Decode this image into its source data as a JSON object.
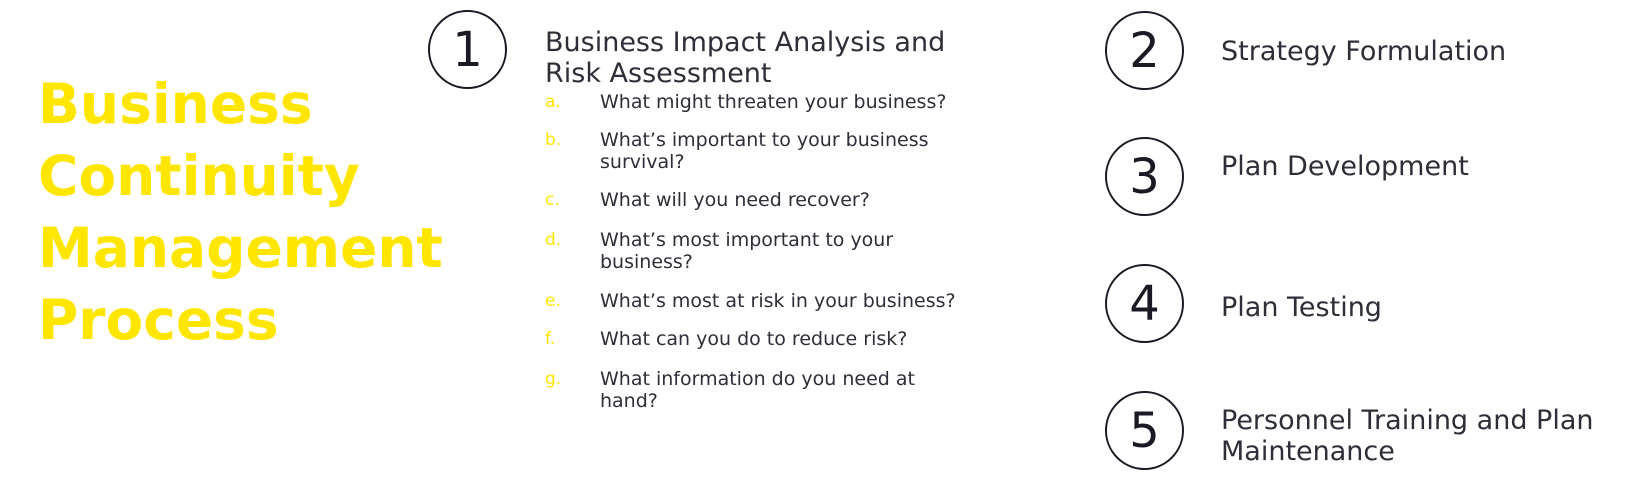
{
  "title": {
    "lines": [
      "Business",
      "Continuity",
      "Management",
      "Process"
    ]
  },
  "steps": [
    {
      "number": "1",
      "title": "Business Impact Analysis and Risk Assessment",
      "title_lines": [
        "Business Impact Analysis and",
        "Risk Assessment"
      ],
      "subitems": [
        {
          "letter": "a.",
          "text": "What might threaten your business?"
        },
        {
          "letter": "b.",
          "text": "What’s important to your business survival?"
        },
        {
          "letter": "c.",
          "text": "What will you need recover?"
        },
        {
          "letter": "d.",
          "text": "What’s most important to your business?"
        },
        {
          "letter": "e.",
          "text": "What’s most at risk in your business?"
        },
        {
          "letter": "f.",
          "text": "What can you do to reduce risk?"
        },
        {
          "letter": "g.",
          "text": "What information do you need at hand?"
        }
      ]
    },
    {
      "number": "2",
      "title": "Strategy Formulation"
    },
    {
      "number": "3",
      "title": "Plan Development"
    },
    {
      "number": "4",
      "title": "Plan Testing"
    },
    {
      "number": "5",
      "title": "Personnel Training and Plan Maintenance",
      "title_lines": [
        "Personnel Training and Plan",
        "Maintenance"
      ]
    }
  ],
  "colors": {
    "accent": "#ffe600",
    "text": "#2e2e38",
    "circle": "#1a1a24"
  }
}
